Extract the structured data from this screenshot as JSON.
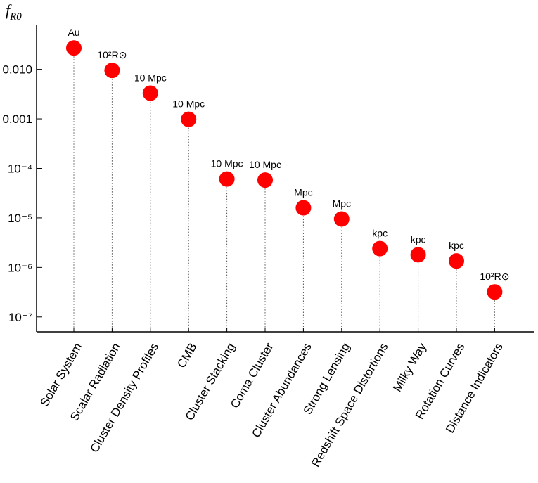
{
  "chart_data": {
    "type": "lollipop",
    "y_label": {
      "base": "f",
      "subscript": "R0"
    },
    "categories": [
      "Solar System",
      "Scalar Radiation",
      "Cluster Density Profiles",
      "CMB",
      "Cluster Stacking",
      "Coma Cluster",
      "Cluster Abundances",
      "Strong Lensing",
      "Redshift Space Distortions",
      "Milky Way",
      "Rotation Curves",
      "Distance Indicators"
    ],
    "values": [
      0.027,
      0.0095,
      0.0033,
      0.00098,
      6.1e-05,
      5.8e-05,
      1.6e-05,
      9.5e-06,
      2.4e-06,
      1.8e-06,
      1.35e-06,
      3.2e-07
    ],
    "point_labels": [
      "Au",
      "10²R⊙",
      "10 Mpc",
      "10 Mpc",
      "10 Mpc",
      "10 Mpc",
      "Mpc",
      "Mpc",
      "kpc",
      "kpc",
      "kpc",
      "10²R⊙"
    ],
    "color": "#ff0000",
    "log_scale": true,
    "ylim": [
      5e-08,
      0.08
    ],
    "yticks": [
      {
        "value": 1e-07,
        "label": "10⁻⁷"
      },
      {
        "value": 1e-06,
        "label": "10⁻⁶"
      },
      {
        "value": 1e-05,
        "label": "10⁻⁵"
      },
      {
        "value": 0.0001,
        "label": "10⁻⁴"
      },
      0.001,
      {
        "value": 0.01,
        "label": "0.010"
      }
    ]
  }
}
